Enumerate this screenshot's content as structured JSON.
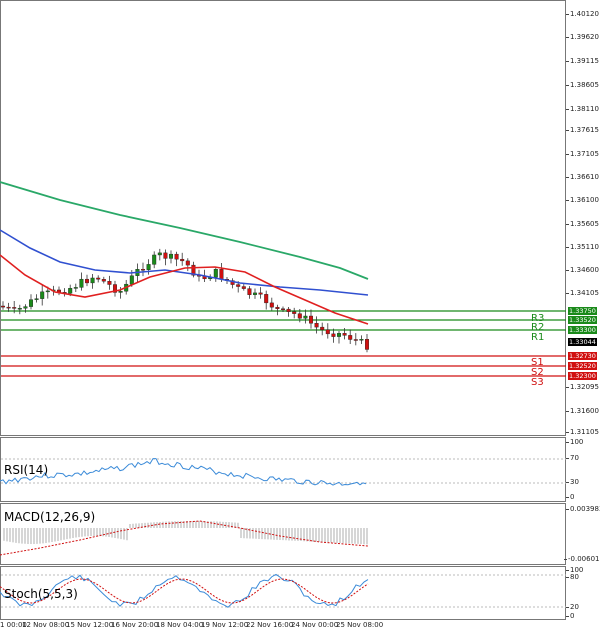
{
  "price_axis": [
    "1.40120",
    "1.39620",
    "1.39115",
    "1.38605",
    "1.38110",
    "1.37615",
    "1.37105",
    "1.36610",
    "1.36100",
    "1.35605",
    "1.35110",
    "1.34600",
    "1.34105",
    "1.33750",
    "1.33520",
    "1.33300",
    "1.33044",
    "1.32730",
    "1.32520",
    "1.32300",
    "1.32095",
    "1.31600",
    "1.31105"
  ],
  "levels": [
    {
      "name": "R3",
      "value": "1.33750",
      "color": "#1a8a1a"
    },
    {
      "name": "R2",
      "value": "1.33520",
      "color": "#1a8a1a"
    },
    {
      "name": "R1",
      "value": "1.33300",
      "color": "#1a8a1a"
    },
    {
      "name": "S1",
      "value": "1.32730",
      "color": "#d01010"
    },
    {
      "name": "S2",
      "value": "1.32520",
      "color": "#d01010"
    },
    {
      "name": "S3",
      "value": "1.32300",
      "color": "#d01010"
    }
  ],
  "current_price": "1.33044",
  "rsi": {
    "label": "RSI(14)",
    "ticks": [
      "100",
      "70",
      "30",
      "0"
    ]
  },
  "macd": {
    "label": "MACD(12,26,9)",
    "ticks": [
      "0.003983",
      "-0.006011"
    ]
  },
  "stoch": {
    "label": "Stoch(5,5,3)",
    "ticks": [
      "100",
      "80",
      "20",
      "0"
    ]
  },
  "x_axis": [
    "1 00:00",
    "12 Nov 08:00",
    "15 Nov 12:00",
    "16 Nov 20:00",
    "18 Nov 04:00",
    "19 Nov 12:00",
    "22 Nov 16:00",
    "24 Nov 00:00",
    "25 Nov 08:00"
  ],
  "colors": {
    "up": "#1a8a1a",
    "down": "#d01010",
    "ma_fast": "#e02020",
    "ma_mid": "#3050d0",
    "ma_slow": "#2aa868",
    "osc": "#3a8ad8"
  }
}
